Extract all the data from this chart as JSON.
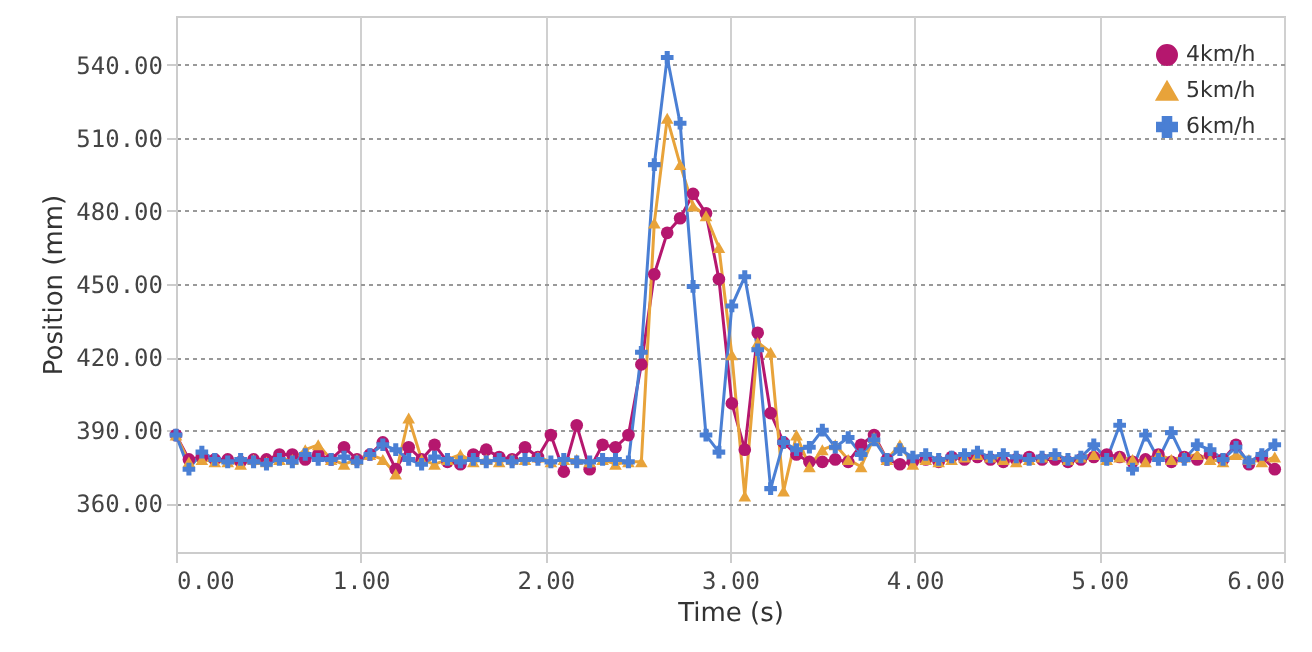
{
  "chart_data": {
    "type": "line",
    "xlabel": "Time (s)",
    "ylabel": "Position (mm)",
    "x": [
      0,
      0.07,
      0.14,
      0.21,
      0.28,
      0.35,
      0.42,
      0.49,
      0.56,
      0.63,
      0.7,
      0.77,
      0.84,
      0.91,
      0.98,
      1.05,
      1.12,
      1.19,
      1.26,
      1.33,
      1.4,
      1.47,
      1.54,
      1.61,
      1.68,
      1.75,
      1.82,
      1.89,
      1.96,
      2.03,
      2.1,
      2.17,
      2.24,
      2.31,
      2.38,
      2.45,
      2.52,
      2.59,
      2.66,
      2.73,
      2.8,
      2.87,
      2.94,
      3.01,
      3.08,
      3.15,
      3.22,
      3.29,
      3.36,
      3.43,
      3.5,
      3.57,
      3.64,
      3.71,
      3.78,
      3.85,
      3.92,
      3.99,
      4.06,
      4.13,
      4.2,
      4.27,
      4.34,
      4.41,
      4.48,
      4.55,
      4.62,
      4.69,
      4.76,
      4.83,
      4.9,
      4.97,
      5.04,
      5.11,
      5.18,
      5.25,
      5.32,
      5.39,
      5.46,
      5.53,
      5.6,
      5.67,
      5.74,
      5.81,
      5.88,
      5.95
    ],
    "series": [
      {
        "name": "4km/h",
        "color": "#b5176e",
        "marker": "circle",
        "values": [
          388,
          378,
          379,
          378,
          378,
          377,
          378,
          378,
          380,
          380,
          378,
          380,
          378,
          383,
          378,
          380,
          385,
          374,
          383,
          378,
          384,
          377,
          376,
          380,
          382,
          379,
          378,
          383,
          379,
          388,
          373,
          392,
          374,
          384,
          383,
          388,
          417,
          454,
          471,
          477,
          487,
          479,
          452,
          401,
          382,
          430,
          397,
          385,
          380,
          377,
          377,
          378,
          377,
          384,
          388,
          378,
          376,
          377,
          378,
          377,
          379,
          378,
          379,
          378,
          377,
          378,
          379,
          378,
          378,
          377,
          378,
          379,
          380,
          379,
          377,
          378,
          380,
          377,
          379,
          378,
          380,
          378,
          384,
          376,
          379,
          374
        ]
      },
      {
        "name": "5km/h",
        "color": "#e8a33a",
        "marker": "triangle",
        "values": [
          388,
          377,
          378,
          377,
          377,
          376,
          378,
          377,
          378,
          378,
          382,
          384,
          378,
          376,
          378,
          380,
          378,
          372,
          395,
          378,
          376,
          378,
          380,
          377,
          378,
          377,
          378,
          378,
          379,
          377,
          378,
          378,
          377,
          378,
          376,
          377,
          377,
          475,
          518,
          499,
          482,
          478,
          465,
          421,
          363,
          426,
          422,
          365,
          388,
          375,
          382,
          384,
          378,
          375,
          387,
          378,
          384,
          376,
          378,
          377,
          378,
          379,
          380,
          379,
          378,
          377,
          378,
          379,
          380,
          378,
          379,
          380,
          378,
          379,
          378,
          377,
          380,
          378,
          379,
          380,
          378,
          377,
          380,
          378,
          377,
          379
        ]
      },
      {
        "name": "6km/h",
        "color": "#4a7fd4",
        "marker": "cross",
        "values": [
          388,
          374,
          381,
          378,
          377,
          378,
          377,
          376,
          378,
          377,
          380,
          378,
          378,
          379,
          377,
          380,
          384,
          382,
          378,
          376,
          379,
          378,
          377,
          378,
          377,
          378,
          377,
          378,
          378,
          377,
          378,
          377,
          377,
          378,
          378,
          377,
          422,
          499,
          543,
          516,
          449,
          388,
          381,
          441,
          453,
          423,
          366,
          385,
          382,
          383,
          390,
          383,
          387,
          380,
          386,
          378,
          382,
          379,
          380,
          378,
          379,
          380,
          381,
          379,
          380,
          379,
          378,
          379,
          380,
          378,
          379,
          384,
          378,
          392,
          374,
          388,
          378,
          389,
          378,
          384,
          382,
          378,
          383,
          377,
          380,
          384
        ]
      }
    ],
    "xlim": [
      0,
      6
    ],
    "xticks": [
      {
        "value": 0,
        "label": "0.00"
      },
      {
        "value": 1,
        "label": "1.00"
      },
      {
        "value": 2,
        "label": "2.00"
      },
      {
        "value": 3,
        "label": "3.00"
      },
      {
        "value": 4,
        "label": "4.00"
      },
      {
        "value": 5,
        "label": "5.00"
      },
      {
        "value": 6,
        "label": "6.00"
      }
    ],
    "ylim": [
      340,
      560
    ],
    "yticks": [
      {
        "value": 360,
        "label": "360.00"
      },
      {
        "value": 390,
        "label": "390.00"
      },
      {
        "value": 420,
        "label": "420.00"
      },
      {
        "value": 450,
        "label": "450.00"
      },
      {
        "value": 480,
        "label": "480.00"
      },
      {
        "value": 510,
        "label": "510.00"
      },
      {
        "value": 540,
        "label": "540.00"
      }
    ],
    "grid": true,
    "legend": "top right"
  }
}
